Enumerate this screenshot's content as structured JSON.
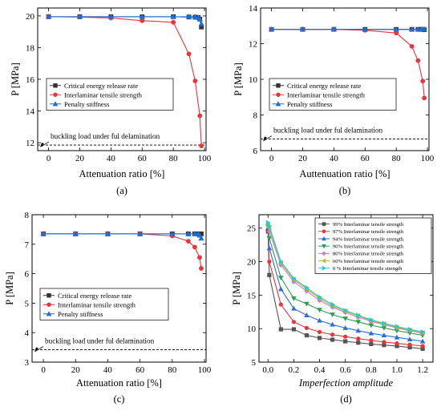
{
  "chart_data": [
    {
      "type": "line",
      "panel_label": "(a)",
      "xlabel": "Attenuation ratio [%]",
      "ylabel": "P [MPa]",
      "xlim": [
        -7,
        101
      ],
      "ylim": [
        11.5,
        20.5
      ],
      "xticks": [
        0,
        20,
        40,
        60,
        80,
        100
      ],
      "yticks": [
        12,
        14,
        16,
        18,
        20
      ],
      "legend_position": "middle-left",
      "series": [
        {
          "name": "Critical energy release rate",
          "color": "#333333",
          "marker": "square",
          "x": [
            0,
            20,
            40,
            60,
            80,
            90,
            94,
            96,
            97,
            98
          ],
          "y": [
            19.95,
            19.95,
            19.95,
            19.95,
            19.95,
            19.93,
            19.92,
            19.9,
            19.8,
            19.3
          ]
        },
        {
          "name": "Interlaminar tensile strength",
          "color": "#e8343a",
          "marker": "circle",
          "x": [
            0,
            20,
            40,
            60,
            80,
            90,
            94,
            97,
            98
          ],
          "y": [
            19.95,
            19.93,
            19.87,
            19.7,
            19.6,
            17.6,
            15.9,
            13.7,
            11.8
          ]
        },
        {
          "name": "Penalty stiffness",
          "color": "#1f6fd1",
          "marker": "triangle",
          "x": [
            0,
            20,
            40,
            60,
            80,
            90,
            94,
            96,
            97,
            98
          ],
          "y": [
            19.95,
            19.95,
            19.95,
            19.95,
            19.95,
            19.95,
            19.94,
            19.9,
            19.8,
            19.5
          ]
        }
      ],
      "reference_line": {
        "label": "buckling load under ful delamination",
        "y": 11.85
      }
    },
    {
      "type": "line",
      "panel_label": "(b)",
      "xlabel": "Auttenuation ratio [%]",
      "ylabel": "P [MPa]",
      "xlim": [
        -7,
        101
      ],
      "ylim": [
        6,
        14
      ],
      "xticks": [
        0,
        20,
        40,
        60,
        80,
        100
      ],
      "yticks": [
        6,
        8,
        10,
        12,
        14
      ],
      "legend_position": "middle-left",
      "series": [
        {
          "name": "Critical energy release rate",
          "color": "#333333",
          "marker": "square",
          "x": [
            0,
            20,
            40,
            60,
            80,
            90,
            94,
            96,
            97,
            98
          ],
          "y": [
            12.8,
            12.8,
            12.8,
            12.8,
            12.8,
            12.8,
            12.8,
            12.8,
            12.8,
            12.78
          ]
        },
        {
          "name": "Interlaminar tensile strength",
          "color": "#e8343a",
          "marker": "circle",
          "x": [
            0,
            20,
            40,
            60,
            80,
            90,
            94,
            97,
            98
          ],
          "y": [
            12.8,
            12.8,
            12.8,
            12.75,
            12.6,
            11.85,
            11.05,
            9.9,
            8.95
          ]
        },
        {
          "name": "Penalty stiffness",
          "color": "#1f6fd1",
          "marker": "triangle",
          "x": [
            0,
            20,
            40,
            60,
            80,
            90,
            94,
            96,
            97,
            98
          ],
          "y": [
            12.8,
            12.8,
            12.8,
            12.8,
            12.8,
            12.8,
            12.8,
            12.8,
            12.8,
            12.8
          ]
        }
      ],
      "reference_line": {
        "label": "buckling load under ful delamination",
        "y": 6.65
      }
    },
    {
      "type": "line",
      "panel_label": "(c)",
      "xlabel": "Attenuation ratio [%]",
      "ylabel": "P [MPa]",
      "xlim": [
        -7,
        101
      ],
      "ylim": [
        3,
        8
      ],
      "xticks": [
        0,
        20,
        40,
        60,
        80,
        100
      ],
      "yticks": [
        3,
        4,
        5,
        6,
        7,
        8
      ],
      "legend_position": "middle-left",
      "series": [
        {
          "name": "Critical energy release rate",
          "color": "#333333",
          "marker": "square",
          "x": [
            0,
            20,
            40,
            60,
            80,
            90,
            94,
            96,
            97,
            98
          ],
          "y": [
            7.35,
            7.35,
            7.35,
            7.35,
            7.35,
            7.35,
            7.35,
            7.35,
            7.35,
            7.35
          ]
        },
        {
          "name": "Interlaminar tensile strength",
          "color": "#e8343a",
          "marker": "circle",
          "x": [
            0,
            20,
            40,
            60,
            80,
            90,
            94,
            97,
            98
          ],
          "y": [
            7.35,
            7.35,
            7.35,
            7.35,
            7.28,
            7.1,
            6.9,
            6.55,
            6.18
          ]
        },
        {
          "name": "Penalty stiffness",
          "color": "#1f6fd1",
          "marker": "triangle",
          "x": [
            0,
            20,
            40,
            60,
            80,
            90,
            94,
            96,
            97,
            98
          ],
          "y": [
            7.35,
            7.35,
            7.35,
            7.35,
            7.35,
            7.35,
            7.35,
            7.35,
            7.3,
            7.2
          ]
        }
      ],
      "reference_line": {
        "label": "buckling load under ful delamination",
        "y": 3.42
      }
    },
    {
      "type": "line",
      "panel_label": "(d)",
      "xlabel": "Imperfection amplitude",
      "ylabel": "P [MPa]",
      "xlim": [
        -0.07,
        1.28
      ],
      "ylim": [
        5,
        27
      ],
      "xticks": [
        0.0,
        0.2,
        0.4,
        0.6,
        0.8,
        1.0,
        1.2
      ],
      "xtick_labels": [
        "0.0",
        "0.2",
        "0.4",
        "0.6",
        "0.8",
        "1.0",
        "1.2"
      ],
      "yticks": [
        5,
        10,
        15,
        20,
        25
      ],
      "legend_position": "top-right",
      "x": [
        0.0,
        0.01,
        0.1,
        0.2,
        0.3,
        0.4,
        0.5,
        0.6,
        0.7,
        0.8,
        0.9,
        1.0,
        1.1,
        1.2
      ],
      "series": [
        {
          "name": "99% Interlaminar tensile strength",
          "color": "#555555",
          "marker": "square",
          "y": [
            24.5,
            18.0,
            9.9,
            9.9,
            9.0,
            8.6,
            8.35,
            8.1,
            7.9,
            7.7,
            7.55,
            7.4,
            7.2,
            7.0
          ]
        },
        {
          "name": "97% Interlaminar tensile strength",
          "color": "#e8343a",
          "marker": "circle",
          "y": [
            24.8,
            20.0,
            13.6,
            11.0,
            10.1,
            9.5,
            9.1,
            8.8,
            8.5,
            8.25,
            8.0,
            7.8,
            7.6,
            7.4
          ]
        },
        {
          "name": "94% Interlaminar tensile strength",
          "color": "#2b6fd6",
          "marker": "triangle",
          "y": [
            25.0,
            22.0,
            15.9,
            13.0,
            12.0,
            11.2,
            10.6,
            10.1,
            9.7,
            9.3,
            9.0,
            8.7,
            8.4,
            8.1
          ]
        },
        {
          "name": "90% Interlaminar tensile strength",
          "color": "#2e9e4f",
          "marker": "triangle-down",
          "y": [
            25.2,
            23.5,
            17.6,
            14.5,
            13.7,
            12.8,
            12.1,
            11.5,
            11.0,
            10.5,
            10.1,
            9.7,
            9.35,
            9.0
          ]
        },
        {
          "name": "80% Interlaminar tensile strength",
          "color": "#c87ad6",
          "marker": "diamond",
          "y": [
            25.4,
            24.5,
            19.5,
            17.0,
            15.6,
            14.2,
            13.2,
            12.4,
            11.7,
            11.1,
            10.6,
            10.1,
            9.7,
            9.3
          ]
        },
        {
          "name": "60% Interlaminar tensile strength",
          "color": "#b5b82b",
          "marker": "triangle-left",
          "y": [
            25.6,
            25.0,
            19.8,
            17.3,
            15.9,
            14.5,
            13.4,
            12.6,
            11.9,
            11.2,
            10.7,
            10.2,
            9.8,
            9.4
          ]
        },
        {
          "name": "0 % Interlaminar tensile strength",
          "color": "#2cc9c9",
          "marker": "triangle-right",
          "y": [
            25.8,
            25.3,
            20.0,
            17.5,
            16.1,
            14.7,
            13.6,
            12.7,
            12.0,
            11.3,
            10.8,
            10.3,
            9.9,
            9.5
          ]
        }
      ]
    }
  ]
}
